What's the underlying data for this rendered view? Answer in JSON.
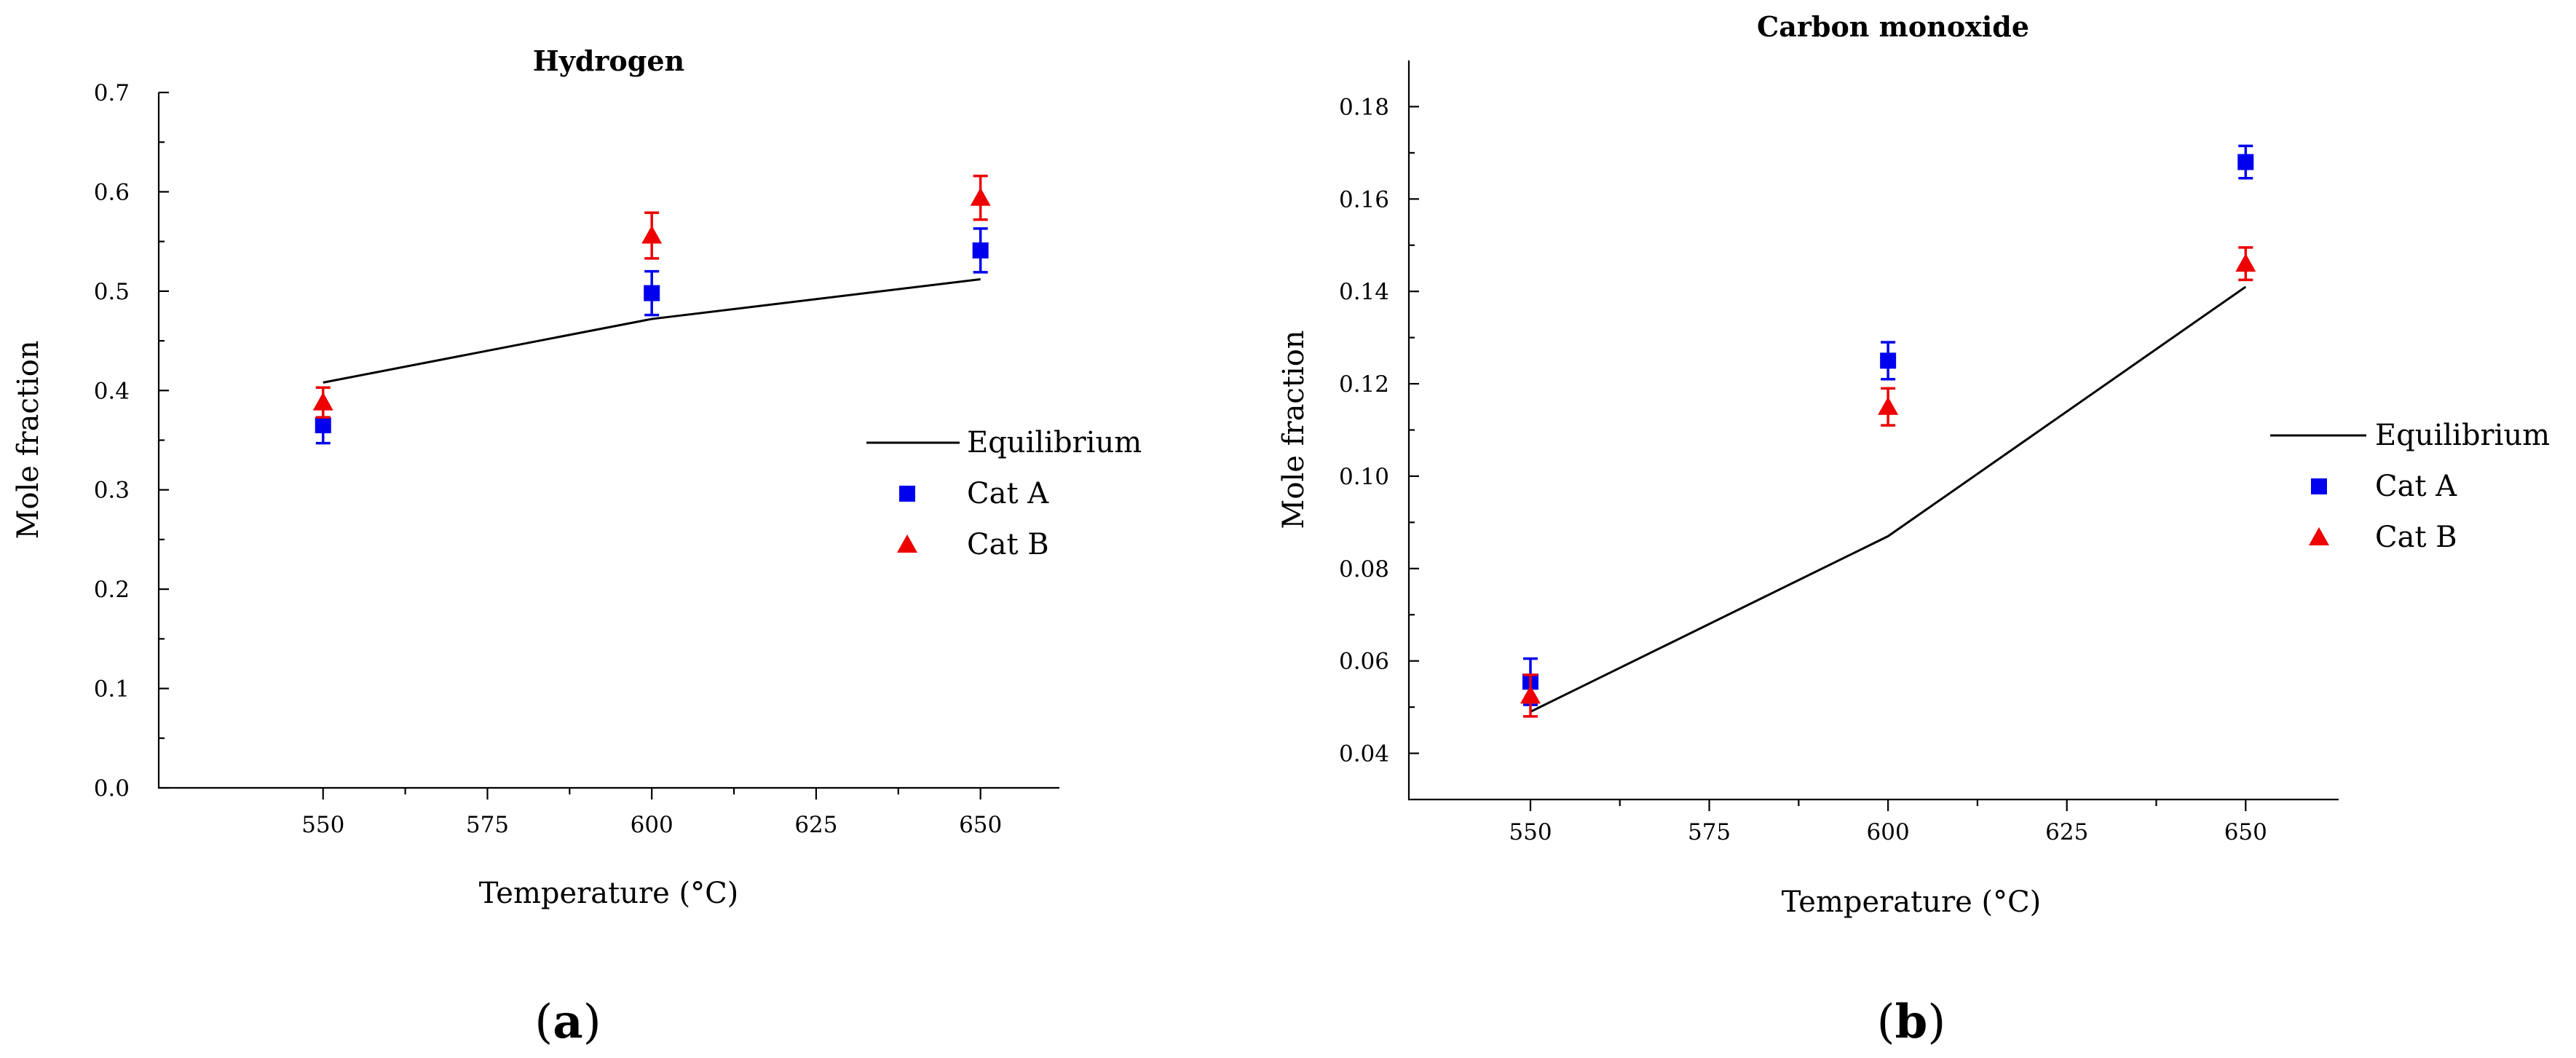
{
  "chart_data": [
    {
      "type": "scatter",
      "title": "Hydrogen",
      "xlabel": "Temperature (°C)",
      "ylabel": "Mole fraction",
      "xlim": [
        525,
        662
      ],
      "ylim": [
        0,
        0.7
      ],
      "xticks": [
        550,
        575,
        600,
        625,
        650
      ],
      "yticks": [
        0.0,
        0.1,
        0.2,
        0.3,
        0.4,
        0.5,
        0.6,
        0.7
      ],
      "ytick_decimals": 1,
      "panel_label": "a",
      "legend": [
        "Equilibrium",
        "Cat A",
        "Cat B"
      ],
      "series": [
        {
          "name": "Equilibrium",
          "kind": "line",
          "x": [
            550,
            600,
            650
          ],
          "values": [
            0.408,
            0.472,
            0.512
          ]
        },
        {
          "name": "Cat A",
          "kind": "marker",
          "marker": "square",
          "color": "#0000ee",
          "x": [
            550,
            600,
            650
          ],
          "values": [
            0.365,
            0.498,
            0.541
          ],
          "errors": [
            0.018,
            0.022,
            0.022
          ]
        },
        {
          "name": "Cat B",
          "kind": "marker",
          "marker": "triangle",
          "color": "#ee0000",
          "x": [
            550,
            600,
            650
          ],
          "values": [
            0.388,
            0.556,
            0.594
          ],
          "errors": [
            0.015,
            0.023,
            0.022
          ]
        }
      ]
    },
    {
      "type": "scatter",
      "title": "Carbon monoxide",
      "xlabel": "Temperature (°C)",
      "ylabel": "Mole fraction",
      "xlim": [
        533,
        663
      ],
      "ylim": [
        0.03,
        0.19
      ],
      "xticks": [
        550,
        575,
        600,
        625,
        650
      ],
      "yticks": [
        0.04,
        0.06,
        0.08,
        0.1,
        0.12,
        0.14,
        0.16,
        0.18
      ],
      "ytick_decimals": 2,
      "panel_label": "b",
      "legend": [
        "Equilibrium",
        "Cat A",
        "Cat B"
      ],
      "series": [
        {
          "name": "Equilibrium",
          "kind": "line",
          "x": [
            550,
            600,
            650
          ],
          "values": [
            0.049,
            0.087,
            0.141
          ]
        },
        {
          "name": "Cat A",
          "kind": "marker",
          "marker": "square",
          "color": "#0000ee",
          "x": [
            550,
            600,
            650
          ],
          "values": [
            0.0555,
            0.125,
            0.168
          ],
          "errors": [
            0.005,
            0.004,
            0.0035
          ]
        },
        {
          "name": "Cat B",
          "kind": "marker",
          "marker": "triangle",
          "color": "#ee0000",
          "x": [
            550,
            600,
            650
          ],
          "values": [
            0.0525,
            0.115,
            0.146
          ],
          "errors": [
            0.0045,
            0.004,
            0.0035
          ]
        }
      ]
    }
  ]
}
